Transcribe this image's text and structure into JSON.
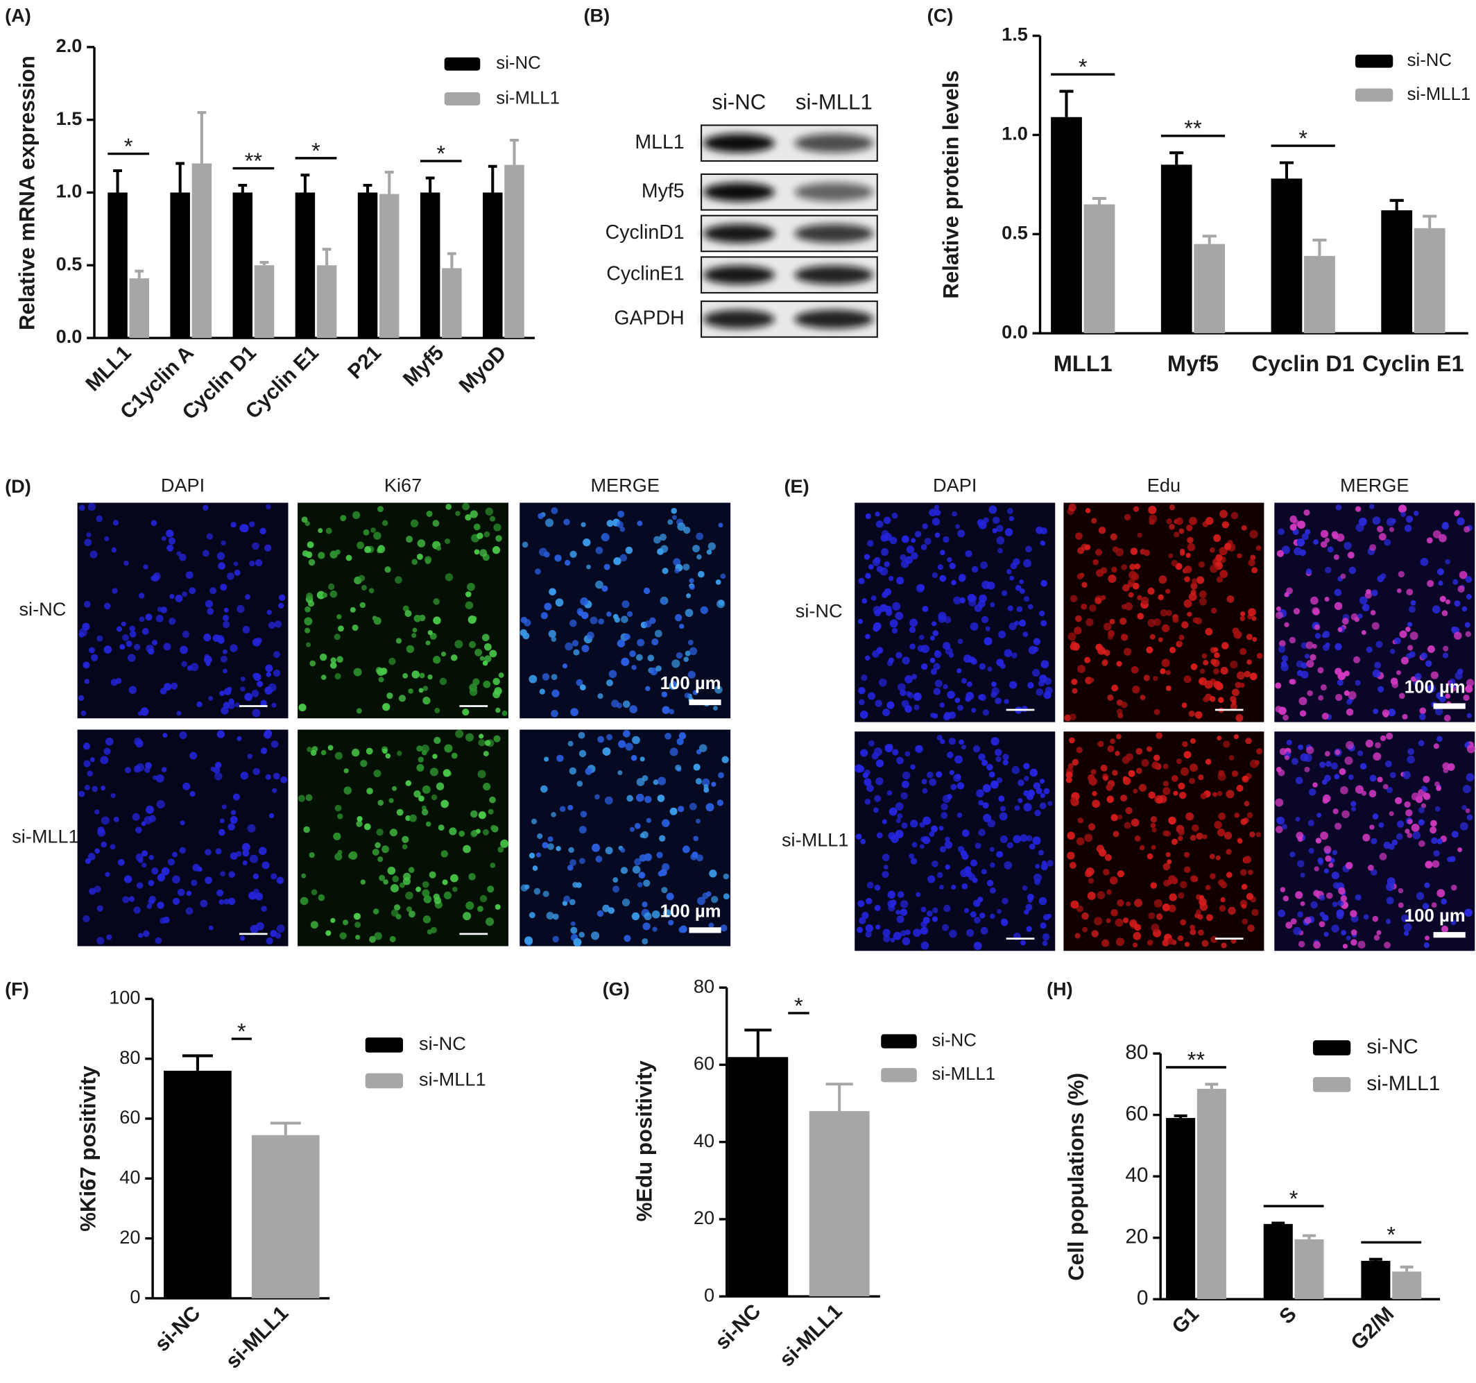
{
  "chart_data": [
    {
      "type": "bar",
      "panel": "(A)",
      "ylabel": "Relative mRNA expression",
      "categories": [
        "MLL1",
        "C1yclin A",
        "Cyclin D1",
        "Cyclin E1",
        "P21",
        "Myf5",
        "MyoD"
      ],
      "series": [
        {
          "name": "si-NC",
          "color": "#000000",
          "values": [
            1,
            1,
            1,
            1,
            1,
            1,
            1
          ],
          "errors": [
            0.15,
            0.2,
            0.05,
            0.12,
            0.05,
            0.1,
            0.18
          ]
        },
        {
          "name": "si-MLL1",
          "color": "#a6a6a8",
          "values": [
            0.41,
            1.2,
            0.5,
            0.5,
            0.99,
            0.48,
            1.19
          ],
          "errors": [
            0.05,
            0.35,
            0.02,
            0.11,
            0.15,
            0.1,
            0.17
          ]
        }
      ],
      "significance": [
        "*",
        null,
        "**",
        "*",
        null,
        "*",
        null
      ],
      "ylim": [
        0,
        2
      ],
      "yticks": [
        {
          "value": 0,
          "label": "0.0"
        },
        {
          "value": 0.5,
          "label": "0.5"
        },
        {
          "value": 1,
          "label": "1.0"
        },
        {
          "value": 1.5,
          "label": "1.5"
        },
        {
          "value": 2,
          "label": "2.0"
        }
      ]
    },
    {
      "type": "bar",
      "panel": "(C)",
      "ylabel": "Relative protein levels",
      "categories": [
        "MLL1",
        "Myf5",
        "Cyclin D1",
        "Cyclin E1"
      ],
      "series": [
        {
          "name": "si-NC",
          "color": "#000000",
          "values": [
            1.09,
            0.85,
            0.78,
            0.62
          ],
          "errors": [
            0.13,
            0.06,
            0.08,
            0.05
          ]
        },
        {
          "name": "si-MLL1",
          "color": "#a6a6a8",
          "values": [
            0.65,
            0.45,
            0.39,
            0.53
          ],
          "errors": [
            0.03,
            0.04,
            0.08,
            0.06
          ]
        }
      ],
      "significance": [
        "*",
        "**",
        "*",
        null
      ],
      "ylim": [
        0,
        1.5
      ],
      "yticks": [
        {
          "value": 0,
          "label": "0.0"
        },
        {
          "value": 0.5,
          "label": "0.5"
        },
        {
          "value": 1,
          "label": "1.0"
        },
        {
          "value": 1.5,
          "label": "1.5"
        }
      ]
    },
    {
      "type": "bar",
      "panel": "(F)",
      "ylabel": "%Ki67 positivity",
      "categories": [
        "si-NC",
        "si-MLL1"
      ],
      "values": [
        76,
        54.5
      ],
      "errors": [
        5,
        4
      ],
      "colors": [
        "#000000",
        "#a6a6a8"
      ],
      "significance": "*",
      "ylim": [
        0,
        100
      ],
      "yticks": [
        0,
        20,
        40,
        60,
        80,
        100
      ]
    },
    {
      "type": "bar",
      "panel": "(G)",
      "ylabel": "%Edu positivity",
      "categories": [
        "si-NC",
        "si-MLL1"
      ],
      "values": [
        62,
        48
      ],
      "errors": [
        7,
        7
      ],
      "colors": [
        "#000000",
        "#a6a6a8"
      ],
      "significance": "*",
      "ylim": [
        0,
        80
      ],
      "yticks": [
        0,
        20,
        40,
        60,
        80
      ]
    },
    {
      "type": "bar",
      "panel": "(H)",
      "ylabel": "Cell populations (%)",
      "categories": [
        "G1",
        "S",
        "G2/M"
      ],
      "series": [
        {
          "name": "si-NC",
          "color": "#000000",
          "values": [
            59,
            24.5,
            12.5
          ],
          "errors": [
            0.7,
            0.3,
            0.5
          ]
        },
        {
          "name": "si-MLL1",
          "color": "#a6a6a8",
          "values": [
            68.5,
            19.5,
            9
          ],
          "errors": [
            1.5,
            1.2,
            1.5
          ]
        }
      ],
      "significance": [
        "**",
        "*",
        "*"
      ],
      "ylim": [
        0,
        80
      ],
      "yticks": [
        0,
        20,
        40,
        60,
        80
      ]
    }
  ],
  "blot": {
    "panel": "(B)",
    "lanes": [
      "si-NC",
      "si-MLL1"
    ],
    "proteins": [
      "MLL1",
      "Myf5",
      "CyclinD1",
      "CyclinE1",
      "GAPDH"
    ]
  },
  "microscopy": [
    {
      "panel": "(D)",
      "channels": [
        "DAPI",
        "Ki67",
        "MERGE"
      ],
      "groups": [
        "si-NC",
        "si-MLL1"
      ],
      "scale_bar": "100 µm"
    },
    {
      "panel": "(E)",
      "channels": [
        "DAPI",
        "Edu",
        "MERGE"
      ],
      "groups": [
        "si-NC",
        "si-MLL1"
      ],
      "scale_bar": "100 µm"
    }
  ]
}
